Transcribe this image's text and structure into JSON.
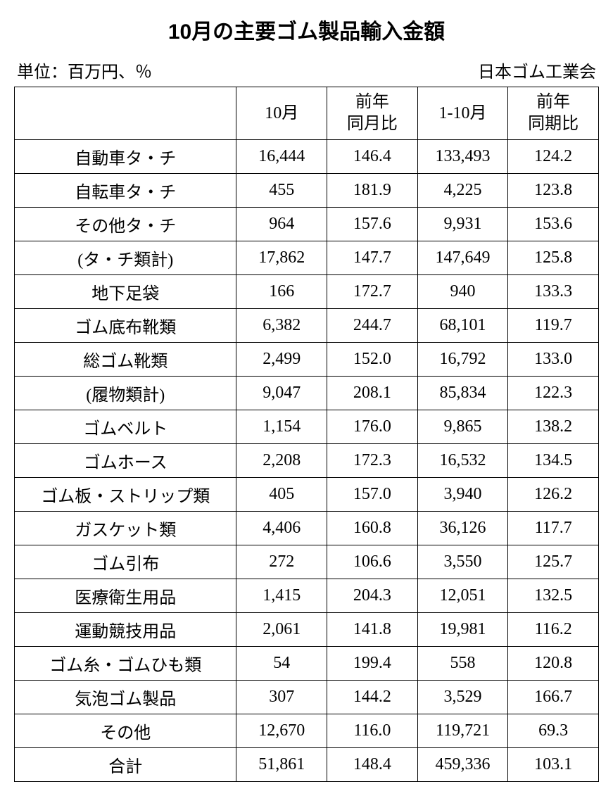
{
  "title": "10月の主要ゴム製品輸入金額",
  "unit_label": "単位：百万円、％",
  "source_label": "日本ゴム工業会",
  "table": {
    "columns": [
      "",
      "10月",
      "前年\n同月比",
      "1-10月",
      "前年\n同期比"
    ],
    "column_widths": [
      "38%",
      "15.5%",
      "15.5%",
      "15.5%",
      "15.5%"
    ],
    "border_color": "#000000",
    "background_color": "#ffffff",
    "font_size": 24,
    "rows": [
      {
        "name": "自動車タ・チ",
        "c1": "16,444",
        "c2": "146.4",
        "c3": "133,493",
        "c4": "124.2"
      },
      {
        "name": "自転車タ・チ",
        "c1": "455",
        "c2": "181.9",
        "c3": "4,225",
        "c4": "123.8"
      },
      {
        "name": "その他タ・チ",
        "c1": "964",
        "c2": "157.6",
        "c3": "9,931",
        "c4": "153.6"
      },
      {
        "name": "(タ・チ類計)",
        "c1": "17,862",
        "c2": "147.7",
        "c3": "147,649",
        "c4": "125.8"
      },
      {
        "name": "地下足袋",
        "c1": "166",
        "c2": "172.7",
        "c3": "940",
        "c4": "133.3"
      },
      {
        "name": "ゴム底布靴類",
        "c1": "6,382",
        "c2": "244.7",
        "c3": "68,101",
        "c4": "119.7"
      },
      {
        "name": "総ゴム靴類",
        "c1": "2,499",
        "c2": "152.0",
        "c3": "16,792",
        "c4": "133.0"
      },
      {
        "name": "(履物類計)",
        "c1": "9,047",
        "c2": "208.1",
        "c3": "85,834",
        "c4": "122.3"
      },
      {
        "name": "ゴムベルト",
        "c1": "1,154",
        "c2": "176.0",
        "c3": "9,865",
        "c4": "138.2"
      },
      {
        "name": "ゴムホース",
        "c1": "2,208",
        "c2": "172.3",
        "c3": "16,532",
        "c4": "134.5"
      },
      {
        "name": "ゴム板・ストリップ類",
        "c1": "405",
        "c2": "157.0",
        "c3": "3,940",
        "c4": "126.2"
      },
      {
        "name": "ガスケット類",
        "c1": "4,406",
        "c2": "160.8",
        "c3": "36,126",
        "c4": "117.7"
      },
      {
        "name": "ゴム引布",
        "c1": "272",
        "c2": "106.6",
        "c3": "3,550",
        "c4": "125.7"
      },
      {
        "name": "医療衛生用品",
        "c1": "1,415",
        "c2": "204.3",
        "c3": "12,051",
        "c4": "132.5"
      },
      {
        "name": "運動競技用品",
        "c1": "2,061",
        "c2": "141.8",
        "c3": "19,981",
        "c4": "116.2"
      },
      {
        "name": "ゴム糸・ゴムひも類",
        "c1": "54",
        "c2": "199.4",
        "c3": "558",
        "c4": "120.8"
      },
      {
        "name": "気泡ゴム製品",
        "c1": "307",
        "c2": "144.2",
        "c3": "3,529",
        "c4": "166.7"
      },
      {
        "name": "その他",
        "c1": "12,670",
        "c2": "116.0",
        "c3": "119,721",
        "c4": "69.3"
      },
      {
        "name": "合計",
        "c1": "51,861",
        "c2": "148.4",
        "c3": "459,336",
        "c4": "103.1"
      }
    ]
  }
}
